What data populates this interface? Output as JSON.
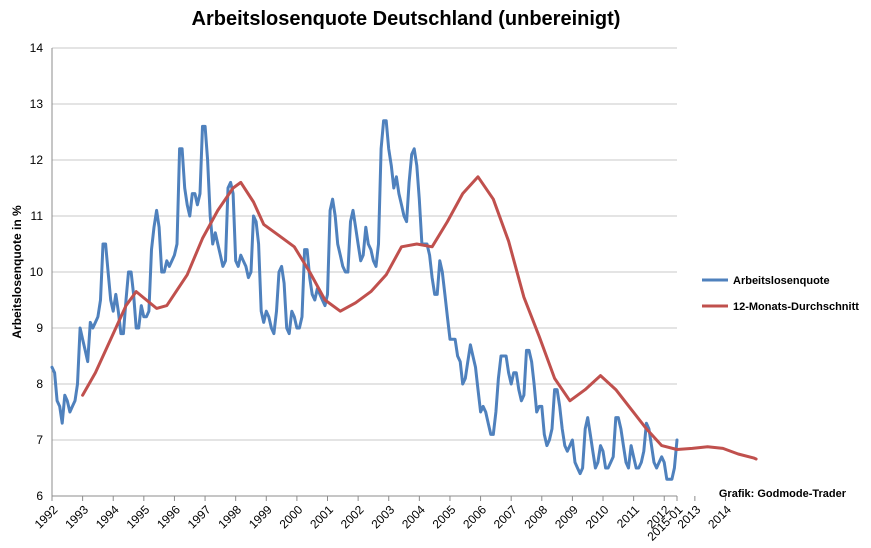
{
  "chart_data": {
    "type": "line",
    "title": "Arbeitslosenquote Deutschland (unbereinigt)",
    "ylabel": "Arbeitslosenquote in %",
    "xlabel": "",
    "ylim": [
      6,
      14
    ],
    "yticks": [
      6,
      7,
      8,
      9,
      10,
      11,
      12,
      13,
      14
    ],
    "xtick_labels": [
      "1992",
      "1993",
      "1994",
      "1995",
      "1996",
      "1997",
      "1998",
      "1999",
      "2000",
      "2001",
      "2002",
      "2003",
      "2004",
      "2005",
      "2006",
      "2007",
      "2008",
      "2009",
      "2010",
      "2011",
      "2012",
      "2013",
      "2014",
      "2015-01"
    ],
    "grid": "horizontal",
    "legend_position": "right",
    "source_note": "Grafik: Godmode-Trader",
    "series": [
      {
        "name": "Arbeitslosenquote",
        "color": "#4F81BD",
        "start": "1992-01",
        "values": [
          8.3,
          8.2,
          7.7,
          7.6,
          7.3,
          7.8,
          7.7,
          7.5,
          7.6,
          7.7,
          8.0,
          9.0,
          8.8,
          8.6,
          8.4,
          9.1,
          9.0,
          9.1,
          9.2,
          9.5,
          10.5,
          10.5,
          10.0,
          9.5,
          9.3,
          9.6,
          9.3,
          8.9,
          8.9,
          9.5,
          10.0,
          10.0,
          9.6,
          9.0,
          9.0,
          9.4,
          9.2,
          9.2,
          9.3,
          10.4,
          10.8,
          11.1,
          10.8,
          10.0,
          10.0,
          10.2,
          10.1,
          10.2,
          10.3,
          10.5,
          12.2,
          12.2,
          11.5,
          11.2,
          11.0,
          11.4,
          11.4,
          11.2,
          11.4,
          12.6,
          12.6,
          12.0,
          11.0,
          10.5,
          10.7,
          10.5,
          10.3,
          10.1,
          10.2,
          11.5,
          11.6,
          11.4,
          10.2,
          10.1,
          10.3,
          10.2,
          10.1,
          9.9,
          10.0,
          11.0,
          10.9,
          10.5,
          9.3,
          9.1,
          9.3,
          9.2,
          9.0,
          8.9,
          9.3,
          10.0,
          10.1,
          9.8,
          9.0,
          8.9,
          9.3,
          9.2,
          9.0,
          9.0,
          9.2,
          10.4,
          10.4,
          9.9,
          9.6,
          9.5,
          9.7,
          9.6,
          9.5,
          9.4,
          9.6,
          11.1,
          11.3,
          11.0,
          10.5,
          10.3,
          10.1,
          10.0,
          10.0,
          10.9,
          11.1,
          10.8,
          10.5,
          10.2,
          10.3,
          10.8,
          10.5,
          10.4,
          10.2,
          10.1,
          10.5,
          12.2,
          12.7,
          12.7,
          12.2,
          11.9,
          11.5,
          11.7,
          11.4,
          11.2,
          11.0,
          10.9,
          11.6,
          12.1,
          12.2,
          11.9,
          11.3,
          10.5,
          10.5,
          10.5,
          10.3,
          9.9,
          9.6,
          9.6,
          10.2,
          10.0,
          9.6,
          9.2,
          8.8,
          8.8,
          8.8,
          8.5,
          8.4,
          8.0,
          8.1,
          8.4,
          8.7,
          8.5,
          8.3,
          7.9,
          7.5,
          7.6,
          7.5,
          7.3,
          7.1,
          7.1,
          7.5,
          8.1,
          8.5,
          8.5,
          8.5,
          8.2,
          8.0,
          8.2,
          8.2,
          7.9,
          7.7,
          7.8,
          8.6,
          8.6,
          8.4,
          8.0,
          7.5,
          7.6,
          7.6,
          7.1,
          6.9,
          7.0,
          7.2,
          7.9,
          7.9,
          7.6,
          7.2,
          6.9,
          6.8,
          6.9,
          7.0,
          6.6,
          6.5,
          6.4,
          6.5,
          7.2,
          7.4,
          7.1,
          6.8,
          6.5,
          6.6,
          6.9,
          6.8,
          6.5,
          6.5,
          6.6,
          6.7,
          7.4,
          7.4,
          7.2,
          6.9,
          6.6,
          6.5,
          6.9,
          6.7,
          6.5,
          6.5,
          6.6,
          6.8,
          7.3,
          7.2,
          6.9,
          6.6,
          6.5,
          6.6,
          6.7,
          6.6,
          6.3,
          6.3,
          6.3,
          6.5,
          7.0
        ]
      },
      {
        "name": "12-Monats-Durchschnitt",
        "color": "#C0504D",
        "anchor_points": [
          [
            "1993-01",
            7.8
          ],
          [
            "1993-06",
            8.2
          ],
          [
            "1993-12",
            8.8
          ],
          [
            "1994-06",
            9.4
          ],
          [
            "1994-10",
            9.65
          ],
          [
            "1995-06",
            9.35
          ],
          [
            "1995-10",
            9.4
          ],
          [
            "1996-06",
            9.95
          ],
          [
            "1996-12",
            10.6
          ],
          [
            "1997-06",
            11.1
          ],
          [
            "1997-12",
            11.5
          ],
          [
            "1998-03",
            11.6
          ],
          [
            "1998-08",
            11.25
          ],
          [
            "1998-12",
            10.85
          ],
          [
            "1999-06",
            10.65
          ],
          [
            "1999-12",
            10.45
          ],
          [
            "2000-06",
            10.0
          ],
          [
            "2000-12",
            9.5
          ],
          [
            "2001-06",
            9.3
          ],
          [
            "2001-12",
            9.45
          ],
          [
            "2002-06",
            9.65
          ],
          [
            "2002-12",
            9.95
          ],
          [
            "2003-06",
            10.45
          ],
          [
            "2003-12",
            10.5
          ],
          [
            "2004-06",
            10.45
          ],
          [
            "2004-12",
            10.9
          ],
          [
            "2005-06",
            11.4
          ],
          [
            "2005-12",
            11.7
          ],
          [
            "2006-06",
            11.3
          ],
          [
            "2006-12",
            10.55
          ],
          [
            "2007-06",
            9.55
          ],
          [
            "2007-12",
            8.85
          ],
          [
            "2008-06",
            8.1
          ],
          [
            "2008-12",
            7.7
          ],
          [
            "2009-06",
            7.9
          ],
          [
            "2009-12",
            8.15
          ],
          [
            "2010-06",
            7.9
          ],
          [
            "2010-12",
            7.55
          ],
          [
            "2011-06",
            7.2
          ],
          [
            "2011-12",
            6.9
          ],
          [
            "2012-06",
            6.83
          ],
          [
            "2012-12",
            6.85
          ],
          [
            "2013-06",
            6.88
          ],
          [
            "2013-12",
            6.85
          ],
          [
            "2014-06",
            6.75
          ],
          [
            "2014-12",
            6.68
          ],
          [
            "2015-01",
            6.66
          ]
        ]
      }
    ]
  }
}
